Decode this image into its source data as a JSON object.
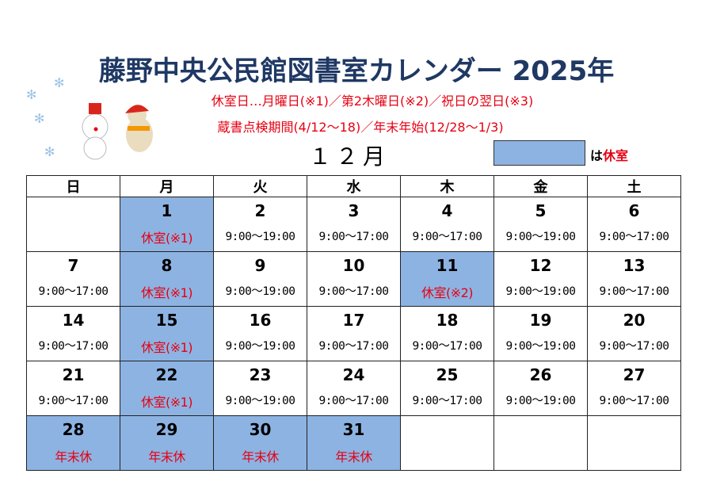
{
  "title": "藤野中央公民館図書室カレンダー 2025年",
  "notes": [
    "休室日…月曜日(※1)／第2木曜日(※2)／祝日の翌日(※3)",
    "蔵書点検期間(4/12〜18)／年末年始(12/28〜1/3)"
  ],
  "month": "１２月",
  "legend": {
    "prefix": "は",
    "label": "休室",
    "color": "#8db3e2"
  },
  "weekdays": [
    "日",
    "月",
    "火",
    "水",
    "木",
    "金",
    "土"
  ],
  "weeks": [
    [
      {
        "day": "",
        "text": ""
      },
      {
        "day": "1",
        "text": "休室(※1)",
        "closed": true
      },
      {
        "day": "2",
        "text": "9:00〜19:00"
      },
      {
        "day": "3",
        "text": "9:00〜17:00"
      },
      {
        "day": "4",
        "text": "9:00〜17:00"
      },
      {
        "day": "5",
        "text": "9:00〜19:00"
      },
      {
        "day": "6",
        "text": "9:00〜17:00"
      }
    ],
    [
      {
        "day": "7",
        "text": "9:00〜17:00"
      },
      {
        "day": "8",
        "text": "休室(※1)",
        "closed": true
      },
      {
        "day": "9",
        "text": "9:00〜19:00"
      },
      {
        "day": "10",
        "text": "9:00〜17:00"
      },
      {
        "day": "11",
        "text": "休室(※2)",
        "closed": true
      },
      {
        "day": "12",
        "text": "9:00〜19:00"
      },
      {
        "day": "13",
        "text": "9:00〜17:00"
      }
    ],
    [
      {
        "day": "14",
        "text": "9:00〜17:00"
      },
      {
        "day": "15",
        "text": "休室(※1)",
        "closed": true
      },
      {
        "day": "16",
        "text": "9:00〜19:00"
      },
      {
        "day": "17",
        "text": "9:00〜17:00"
      },
      {
        "day": "18",
        "text": "9:00〜17:00"
      },
      {
        "day": "19",
        "text": "9:00〜19:00"
      },
      {
        "day": "20",
        "text": "9:00〜17:00"
      }
    ],
    [
      {
        "day": "21",
        "text": "9:00〜17:00"
      },
      {
        "day": "22",
        "text": "休室(※1)",
        "closed": true
      },
      {
        "day": "23",
        "text": "9:00〜19:00"
      },
      {
        "day": "24",
        "text": "9:00〜17:00"
      },
      {
        "day": "25",
        "text": "9:00〜17:00"
      },
      {
        "day": "26",
        "text": "9:00〜19:00"
      },
      {
        "day": "27",
        "text": "9:00〜17:00"
      }
    ],
    [
      {
        "day": "28",
        "text": "年末休",
        "closed": true
      },
      {
        "day": "29",
        "text": "年末休",
        "closed": true
      },
      {
        "day": "30",
        "text": "年末休",
        "closed": true
      },
      {
        "day": "31",
        "text": "年末休",
        "closed": true
      },
      {
        "day": "",
        "text": ""
      },
      {
        "day": "",
        "text": ""
      },
      {
        "day": "",
        "text": ""
      }
    ]
  ]
}
